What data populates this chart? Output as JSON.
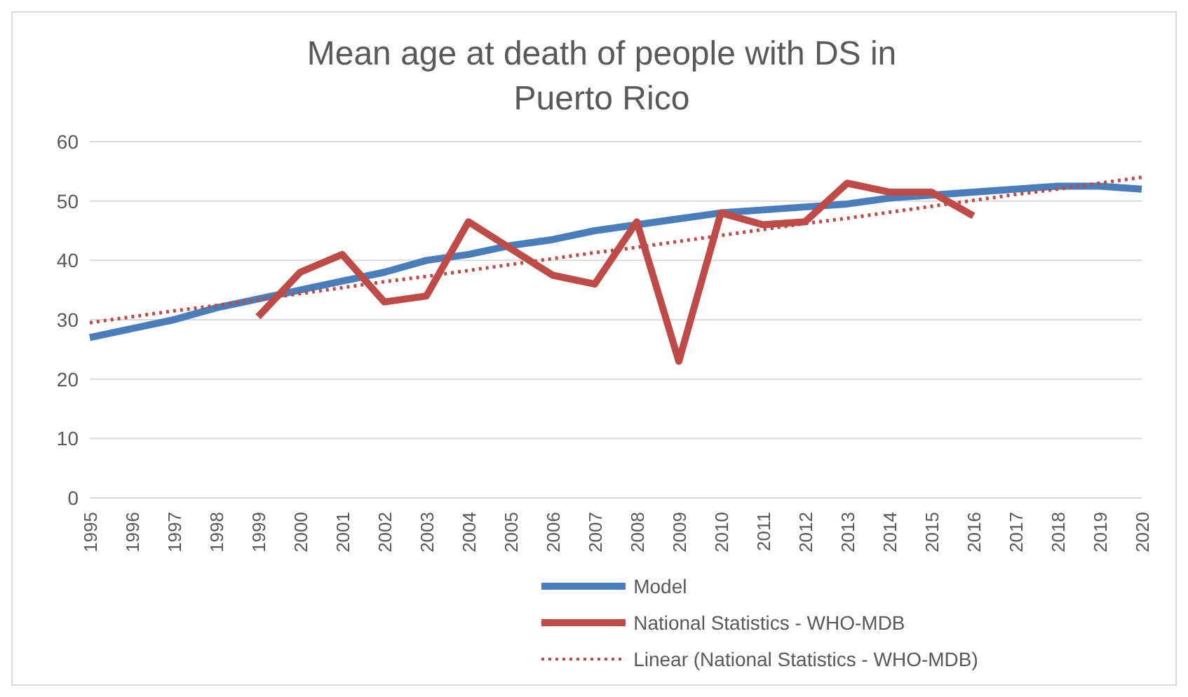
{
  "chart_data": {
    "type": "line",
    "title": "Mean age at death of people with DS in Puerto Rico",
    "categories": [
      "1995",
      "1996",
      "1997",
      "1998",
      "1999",
      "2000",
      "2001",
      "2002",
      "2003",
      "2004",
      "2005",
      "2006",
      "2007",
      "2008",
      "2009",
      "2010",
      "2011",
      "2012",
      "2013",
      "2014",
      "2015",
      "2016",
      "2017",
      "2018",
      "2019",
      "2020"
    ],
    "series": [
      {
        "name": "Model",
        "color": "#4a7ebb",
        "values": [
          27,
          28.5,
          30,
          32,
          33.5,
          35,
          36.5,
          38,
          40,
          41,
          42.5,
          43.5,
          45,
          46,
          47,
          48,
          48.5,
          49,
          49.5,
          50.5,
          51,
          51.5,
          52,
          52.5,
          52.5,
          52
        ]
      },
      {
        "name": "National Statistics - WHO-MDB",
        "color": "#be4b48",
        "values": [
          null,
          null,
          null,
          null,
          30.5,
          38,
          41,
          33,
          34,
          46.5,
          42,
          37.5,
          36,
          46.5,
          23,
          48,
          46,
          46.5,
          53,
          51.5,
          51.5,
          47.5,
          null,
          null,
          null,
          null
        ]
      },
      {
        "name": "Linear (National Statistics - WHO-MDB)",
        "type": "line",
        "color": "#be4b48",
        "line_style": "dotted",
        "values": [
          29.5,
          30.5,
          31.5,
          32.4,
          33.4,
          34.4,
          35.4,
          36.4,
          37.3,
          38.3,
          39.3,
          40.3,
          41.3,
          42.2,
          43.2,
          44.2,
          45.2,
          46.2,
          47.1,
          48.1,
          49.1,
          50.1,
          51.1,
          52,
          53,
          54
        ]
      }
    ],
    "ylim": [
      0,
      60
    ],
    "yticks": [
      0,
      10,
      20,
      30,
      40,
      50,
      60
    ],
    "grid": "y",
    "legend": "bottom",
    "marker": "none",
    "line_style": "solid"
  }
}
